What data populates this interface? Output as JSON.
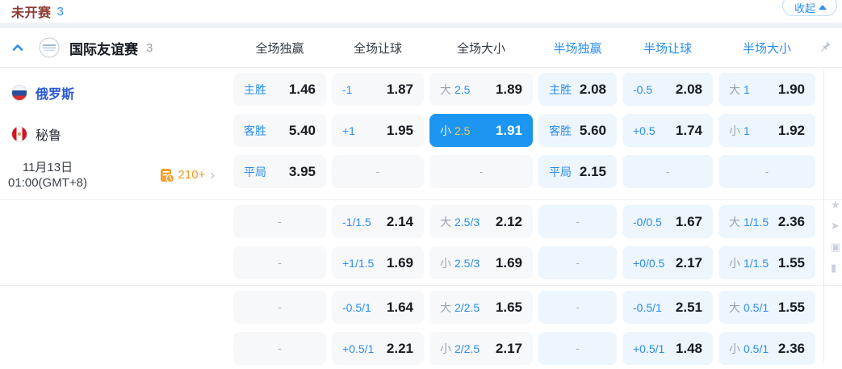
{
  "topbar": {
    "status": "未开赛",
    "count": "3",
    "collapse": "收起"
  },
  "header": {
    "league": "国际友谊赛",
    "match_count": "3",
    "columns": [
      {
        "label": "全场独赢",
        "scope": "full"
      },
      {
        "label": "全场让球",
        "scope": "full"
      },
      {
        "label": "全场大小",
        "scope": "full"
      },
      {
        "label": "半场独赢",
        "scope": "half"
      },
      {
        "label": "半场让球",
        "scope": "half"
      },
      {
        "label": "半场大小",
        "scope": "half"
      }
    ]
  },
  "match": {
    "home": {
      "name": "俄罗斯",
      "flag": "russia-flag"
    },
    "away": {
      "name": "秘鲁",
      "flag": "peru-flag"
    },
    "date": "11月13日",
    "time": "01:00(GMT+8)",
    "more_markets": "210+"
  },
  "odds": {
    "rows": [
      {
        "cells": [
          {
            "label": "主胜",
            "value": "1.46",
            "bg": "gray"
          },
          {
            "label": "-1",
            "value": "1.87",
            "bg": "gray"
          },
          {
            "prefix": "大",
            "label": "2.5",
            "value": "1.89",
            "bg": "gray"
          },
          {
            "label": "主胜",
            "value": "2.08",
            "bg": "blue"
          },
          {
            "label": "-0.5",
            "value": "2.08",
            "bg": "blue"
          },
          {
            "prefix": "大",
            "label": "1",
            "value": "1.90",
            "bg": "blue"
          }
        ]
      },
      {
        "cells": [
          {
            "label": "客胜",
            "value": "5.40",
            "bg": "gray"
          },
          {
            "label": "+1",
            "value": "1.95",
            "bg": "gray"
          },
          {
            "prefix": "小",
            "label": "2.5",
            "value": "1.91",
            "bg": "gray",
            "selected": true
          },
          {
            "label": "客胜",
            "value": "5.60",
            "bg": "blue"
          },
          {
            "label": "+0.5",
            "value": "1.74",
            "bg": "blue"
          },
          {
            "prefix": "小",
            "label": "1",
            "value": "1.92",
            "bg": "blue"
          }
        ]
      },
      {
        "cells": [
          {
            "label": "平局",
            "value": "3.95",
            "bg": "gray"
          },
          {
            "dash": true,
            "bg": "gray"
          },
          {
            "dash": true,
            "bg": "gray"
          },
          {
            "label": "平局",
            "value": "2.15",
            "bg": "blue"
          },
          {
            "dash": true,
            "bg": "blue"
          },
          {
            "dash": true,
            "bg": "blue"
          }
        ]
      },
      {
        "cells": [
          {
            "dash": true,
            "bg": "gray"
          },
          {
            "label": "-1/1.5",
            "value": "2.14",
            "bg": "gray"
          },
          {
            "prefix": "大",
            "label": "2.5/3",
            "value": "2.12",
            "bg": "gray"
          },
          {
            "dash": true,
            "bg": "blue"
          },
          {
            "label": "-0/0.5",
            "value": "1.67",
            "bg": "blue"
          },
          {
            "prefix": "大",
            "label": "1/1.5",
            "value": "2.36",
            "bg": "blue"
          }
        ]
      },
      {
        "cells": [
          {
            "dash": true,
            "bg": "gray"
          },
          {
            "label": "+1/1.5",
            "value": "1.69",
            "bg": "gray"
          },
          {
            "prefix": "小",
            "label": "2.5/3",
            "value": "1.69",
            "bg": "gray"
          },
          {
            "dash": true,
            "bg": "blue"
          },
          {
            "label": "+0/0.5",
            "value": "2.17",
            "bg": "blue"
          },
          {
            "prefix": "小",
            "label": "1/1.5",
            "value": "1.55",
            "bg": "blue"
          }
        ]
      },
      {
        "cells": [
          {
            "dash": true,
            "bg": "gray"
          },
          {
            "label": "-0.5/1",
            "value": "1.64",
            "bg": "gray"
          },
          {
            "prefix": "大",
            "label": "2/2.5",
            "value": "1.65",
            "bg": "gray"
          },
          {
            "dash": true,
            "bg": "blue"
          },
          {
            "label": "-0.5/1",
            "value": "2.51",
            "bg": "blue"
          },
          {
            "prefix": "大",
            "label": "0.5/1",
            "value": "1.55",
            "bg": "blue"
          }
        ]
      },
      {
        "cells": [
          {
            "dash": true,
            "bg": "gray"
          },
          {
            "label": "+0.5/1",
            "value": "2.21",
            "bg": "gray"
          },
          {
            "prefix": "小",
            "label": "2/2.5",
            "value": "2.17",
            "bg": "gray"
          },
          {
            "dash": true,
            "bg": "blue"
          },
          {
            "label": "+0.5/1",
            "value": "1.48",
            "bg": "blue"
          },
          {
            "prefix": "小",
            "label": "0.5/1",
            "value": "2.36",
            "bg": "blue"
          }
        ]
      }
    ]
  },
  "icons": {
    "collapse_caret": "caret-up",
    "panel_chevron": "chevron-up",
    "pin": "pushpin",
    "more": "chevron-right",
    "markets_stat": "document-clock"
  },
  "colors": {
    "accent_blue": "#2a8ef0",
    "selected_cell": "#1d96f2",
    "selected_gold": "#f3c84c",
    "orange": "#f59b25",
    "status_red": "#8f3a33",
    "cell_gray": "#f7f8fa",
    "cell_blue": "#edf5fd"
  }
}
